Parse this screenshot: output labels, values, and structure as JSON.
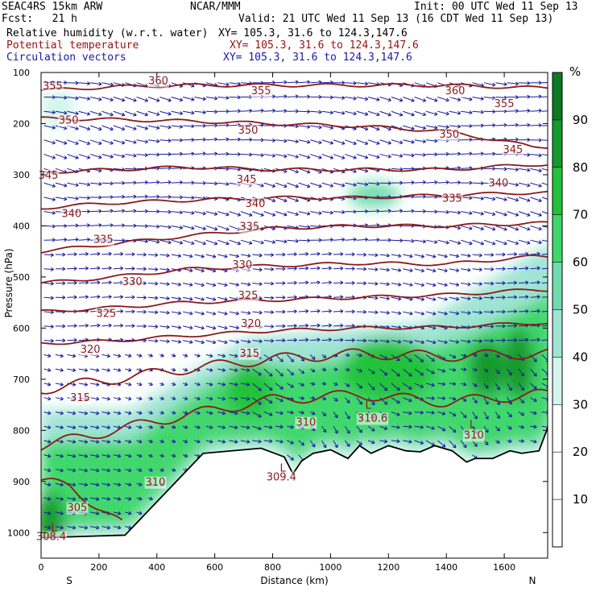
{
  "header": {
    "model": "SEAC4RS 15km ARW",
    "org": "NCAR/MMM",
    "init": "Init: 00 UTC Wed 11 Sep 13",
    "fcst": "Fcst:   21 h",
    "valid": "Valid: 21 UTC Wed 11 Sep 13 (16 CDT Wed 11 Sep 13)",
    "field1_name": "Relative humidity (w.r.t. water)",
    "field1_xy": "XY= 105.3, 31.6 to 124.3,147.6",
    "field2_name": "Potential temperature",
    "field2_xy": "XY= 105.3, 31.6 to 124.3,147.6",
    "field3_name": "Circulation vectors",
    "field3_xy": "XY= 105.3, 31.6 to 124.3,147.6"
  },
  "colors": {
    "theta_contour": "#8b1a1a",
    "vector": "#1a1aa0",
    "terrain": "#000000",
    "field2_text": "#a01010",
    "field3_text": "#1818a8"
  },
  "chart_data": {
    "type": "heatmap",
    "xlabel": "Distance (km)",
    "ylabel": "Pressure (hPa)",
    "xlim": [
      0,
      1750
    ],
    "ylim": [
      1050,
      100
    ],
    "x_ticks": [
      0,
      200,
      400,
      600,
      800,
      1000,
      1200,
      1400,
      1600
    ],
    "y_ticks": [
      100,
      200,
      300,
      400,
      500,
      600,
      700,
      800,
      900,
      1000
    ],
    "x_end_labels": {
      "left": "S",
      "right": "N"
    },
    "colorbar": {
      "unit": "%",
      "ticks": [
        10,
        20,
        30,
        40,
        50,
        60,
        70,
        80,
        90
      ],
      "levels": [
        30,
        40,
        50,
        60,
        70,
        80,
        90,
        100
      ],
      "colors": [
        "#d2f5ec",
        "#a0e4d4",
        "#6fdcae",
        "#3fd76c",
        "#22c23a",
        "#14992b",
        "#0b7a22"
      ]
    },
    "terrain_surface": {
      "x": [
        0,
        290,
        560,
        760,
        840,
        870,
        900,
        940,
        1000,
        1060,
        1100,
        1140,
        1200,
        1260,
        1310,
        1360,
        1420,
        1470,
        1500,
        1560,
        1620,
        1660,
        1720,
        1750
      ],
      "pressure": [
        1010,
        1005,
        845,
        835,
        852,
        885,
        860,
        845,
        838,
        855,
        830,
        845,
        830,
        840,
        842,
        830,
        840,
        862,
        855,
        855,
        840,
        845,
        840,
        795
      ]
    },
    "theta_contours": [
      {
        "value": 355,
        "x": [
          0,
          250,
          500,
          800,
          1100,
          1400,
          1700,
          1750
        ],
        "pressure": [
          135,
          128,
          125,
          125,
          125,
          125,
          130,
          130
        ]
      },
      {
        "value": 350,
        "x": [
          0,
          250,
          500,
          800,
          1100,
          1400,
          1700,
          1750
        ],
        "pressure": [
          190,
          192,
          195,
          200,
          205,
          215,
          245,
          245
        ]
      },
      {
        "value": 345,
        "x": [
          0,
          250,
          500,
          800,
          1100,
          1400,
          1700,
          1750
        ],
        "pressure": [
          295,
          290,
          285,
          290,
          290,
          290,
          280,
          280
        ]
      },
      {
        "value": 340,
        "x": [
          0,
          250,
          500,
          800,
          1100,
          1400,
          1700,
          1750
        ],
        "pressure": [
          365,
          355,
          350,
          345,
          345,
          340,
          335,
          335
        ]
      },
      {
        "value": 335,
        "x": [
          0,
          250,
          500,
          800,
          1100,
          1400,
          1700,
          1750
        ],
        "pressure": [
          450,
          435,
          420,
          405,
          400,
          400,
          395,
          395
        ]
      },
      {
        "value": 330,
        "x": [
          0,
          250,
          500,
          800,
          1100,
          1400,
          1700,
          1750
        ],
        "pressure": [
          512,
          500,
          485,
          478,
          473,
          475,
          460,
          460
        ]
      },
      {
        "value": 325,
        "x": [
          0,
          250,
          500,
          800,
          1100,
          1400,
          1700,
          1750
        ],
        "pressure": [
          568,
          560,
          550,
          545,
          540,
          535,
          525,
          525
        ]
      },
      {
        "value": 320,
        "x": [
          0,
          250,
          500,
          800,
          1100,
          1400,
          1700,
          1750
        ],
        "pressure": [
          630,
          625,
          615,
          605,
          600,
          598,
          590,
          590
        ]
      },
      {
        "value": 315,
        "x": [
          0,
          250,
          500,
          800,
          1100,
          1400,
          1700,
          1750
        ],
        "pressure": [
          720,
          700,
          680,
          660,
          650,
          655,
          650,
          650
        ]
      },
      {
        "value": 310,
        "x": [
          0,
          250,
          500,
          800,
          1100,
          1400,
          1700,
          1750
        ],
        "pressure": [
          830,
          800,
          770,
          740,
          730,
          745,
          730,
          730
        ]
      },
      {
        "value": 305,
        "x": [
          0,
          100,
          200,
          280
        ],
        "pressure": [
          900,
          910,
          950,
          985
        ]
      }
    ],
    "contour_labels": [
      {
        "text": "355",
        "x": 40,
        "p": 125
      },
      {
        "text": "360",
        "x": 405,
        "p": 115
      },
      {
        "text": "355",
        "x": 760,
        "p": 135
      },
      {
        "text": "360",
        "x": 1430,
        "p": 135
      },
      {
        "text": "355",
        "x": 1600,
        "p": 160
      },
      {
        "text": "350",
        "x": 95,
        "p": 192
      },
      {
        "text": "350",
        "x": 715,
        "p": 212
      },
      {
        "text": "350",
        "x": 1410,
        "p": 220
      },
      {
        "text": "345",
        "x": 1630,
        "p": 250
      },
      {
        "text": "345",
        "x": 25,
        "p": 300
      },
      {
        "text": "345",
        "x": 710,
        "p": 308
      },
      {
        "text": "340",
        "x": 1580,
        "p": 315
      },
      {
        "text": "340",
        "x": 105,
        "p": 375
      },
      {
        "text": "340",
        "x": 740,
        "p": 355
      },
      {
        "text": "335",
        "x": 1420,
        "p": 345
      },
      {
        "text": "335",
        "x": 215,
        "p": 425
      },
      {
        "text": "335",
        "x": 720,
        "p": 400
      },
      {
        "text": "330",
        "x": 315,
        "p": 508
      },
      {
        "text": "330",
        "x": 695,
        "p": 475
      },
      {
        "text": "325",
        "x": 225,
        "p": 570
      },
      {
        "text": "325",
        "x": 715,
        "p": 535
      },
      {
        "text": "320",
        "x": 170,
        "p": 640
      },
      {
        "text": "320",
        "x": 725,
        "p": 590
      },
      {
        "text": "315",
        "x": 135,
        "p": 735
      },
      {
        "text": "315",
        "x": 720,
        "p": 648
      },
      {
        "text": "310",
        "x": 395,
        "p": 900
      },
      {
        "text": "310",
        "x": 915,
        "p": 783
      },
      {
        "text": "310.6",
        "x": 1145,
        "p": 775
      },
      {
        "text": "310",
        "x": 1495,
        "p": 808
      },
      {
        "text": "305",
        "x": 125,
        "p": 950
      },
      {
        "text": "309.4",
        "x": 830,
        "p": 890
      },
      {
        "text": "308.4",
        "x": 35,
        "p": 1007
      }
    ],
    "extrema_labels": [
      {
        "text": "L",
        "x": 835,
        "p": 873
      },
      {
        "text": "L",
        "x": 1130,
        "p": 750
      },
      {
        "text": "L",
        "x": 1490,
        "p": 788
      },
      {
        "text": "L",
        "x": 45,
        "p": 990
      }
    ],
    "rh_features": [
      {
        "rh": 85,
        "x": 30,
        "p": 980,
        "rx": 50,
        "rp": 60
      },
      {
        "rh": 75,
        "x": 1200,
        "p": 680,
        "rx": 160,
        "rp": 60
      },
      {
        "rh": 80,
        "x": 1540,
        "p": 680,
        "rx": 60,
        "rp": 55
      },
      {
        "rh": 85,
        "x": 1650,
        "p": 670,
        "rx": 50,
        "rp": 70
      },
      {
        "rh": 70,
        "x": 720,
        "p": 720,
        "rx": 80,
        "rp": 55
      },
      {
        "rh": 55,
        "x": 1150,
        "p": 340,
        "rx": 90,
        "rp": 25
      },
      {
        "rh": 35,
        "x": 60,
        "p": 170,
        "rx": 60,
        "rp": 40
      }
    ]
  }
}
